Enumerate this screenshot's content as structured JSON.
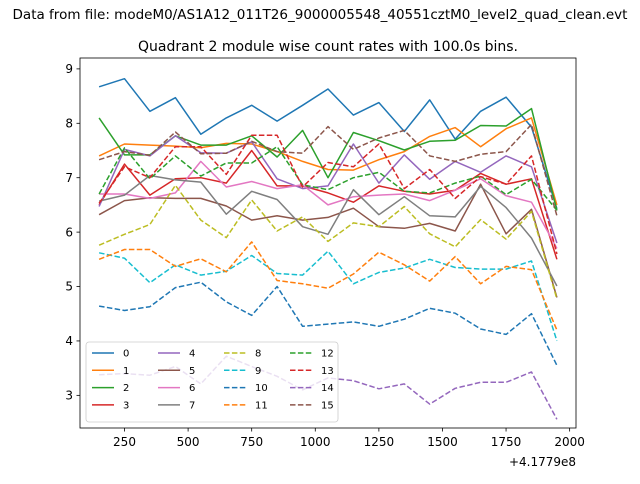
{
  "figure": {
    "suptitle": "Data from file: modeM0/AS1A12_011T26_9000005548_40551cztM0_level2_quad_clean.evt"
  },
  "chart_data": {
    "type": "line",
    "title": "Quadrant 2 module wise count rates with 100.0s bins.",
    "xlabel": "",
    "ylabel": "",
    "x_offset_label": "+4.1779e8",
    "x": [
      150,
      250,
      350,
      450,
      550,
      650,
      750,
      850,
      950,
      1050,
      1150,
      1250,
      1350,
      1450,
      1550,
      1650,
      1750,
      1850,
      1950
    ],
    "xlim": [
      75,
      2025
    ],
    "ylim": [
      2.4,
      9.2
    ],
    "xticks": [
      250,
      500,
      750,
      1000,
      1250,
      1500,
      1750,
      2000
    ],
    "xtick_labels": [
      "250",
      "500",
      "750",
      "1000",
      "1250",
      "1500",
      "1750",
      "2000"
    ],
    "yticks": [
      3,
      4,
      5,
      6,
      7,
      8,
      9
    ],
    "ytick_labels": [
      "3",
      "4",
      "5",
      "6",
      "7",
      "8",
      "9"
    ],
    "grid": false,
    "legend_position": "lower-left",
    "legend_columns": 4,
    "series": [
      {
        "name": "0",
        "color": "#1f77b4",
        "dash": "solid",
        "values": [
          8.67,
          8.82,
          8.22,
          8.47,
          7.8,
          8.1,
          8.33,
          8.04,
          8.33,
          8.63,
          8.15,
          8.38,
          7.85,
          8.43,
          7.71,
          8.22,
          8.48,
          7.93,
          6.43
        ]
      },
      {
        "name": "1",
        "color": "#ff7f0e",
        "dash": "solid",
        "values": [
          7.4,
          7.62,
          7.6,
          7.58,
          7.55,
          7.63,
          7.62,
          7.48,
          7.3,
          7.15,
          7.14,
          7.33,
          7.48,
          7.76,
          7.92,
          7.57,
          7.9,
          8.1,
          6.5
        ]
      },
      {
        "name": "2",
        "color": "#2ca02c",
        "dash": "solid",
        "values": [
          8.1,
          7.42,
          7.42,
          7.77,
          7.6,
          7.6,
          7.77,
          7.38,
          7.87,
          7.0,
          7.83,
          7.68,
          7.51,
          7.67,
          7.69,
          7.96,
          7.95,
          8.27,
          6.4
        ]
      },
      {
        "name": "3",
        "color": "#d62728",
        "dash": "solid",
        "values": [
          6.5,
          7.25,
          6.68,
          6.98,
          7.0,
          6.9,
          7.5,
          6.85,
          6.85,
          6.72,
          6.55,
          6.85,
          6.75,
          6.7,
          6.77,
          7.08,
          6.88,
          6.98,
          5.5
        ]
      },
      {
        "name": "4",
        "color": "#9467bd",
        "dash": "solid",
        "values": [
          6.47,
          7.52,
          7.4,
          7.77,
          7.46,
          7.45,
          7.66,
          6.98,
          6.8,
          6.85,
          7.62,
          6.9,
          7.42,
          6.97,
          7.3,
          7.1,
          7.4,
          7.2,
          5.8
        ]
      },
      {
        "name": "5",
        "color": "#8c564b",
        "dash": "solid",
        "values": [
          6.32,
          6.58,
          6.63,
          6.62,
          6.62,
          6.48,
          6.22,
          6.3,
          6.22,
          6.27,
          6.44,
          6.1,
          6.07,
          6.16,
          6.02,
          6.88,
          5.97,
          6.42,
          4.8
        ]
      },
      {
        "name": "6",
        "color": "#e377c2",
        "dash": "solid",
        "values": [
          6.7,
          6.7,
          6.62,
          6.72,
          7.3,
          6.83,
          6.93,
          6.8,
          6.87,
          6.5,
          6.65,
          6.68,
          6.7,
          6.58,
          6.77,
          6.98,
          6.67,
          6.55,
          5.7
        ]
      },
      {
        "name": "7",
        "color": "#7f7f7f",
        "dash": "solid",
        "values": [
          6.57,
          6.68,
          7.04,
          6.96,
          6.92,
          6.33,
          6.75,
          6.6,
          6.1,
          5.96,
          6.78,
          6.32,
          6.65,
          6.3,
          6.28,
          6.84,
          6.45,
          5.89,
          5.01
        ]
      },
      {
        "name": "8",
        "color": "#bcbd22",
        "dash": "dashed",
        "values": [
          5.76,
          5.96,
          6.14,
          6.86,
          6.22,
          5.9,
          6.59,
          6.02,
          6.28,
          5.83,
          6.17,
          6.1,
          6.47,
          5.97,
          5.73,
          6.23,
          5.87,
          6.38,
          4.77
        ]
      },
      {
        "name": "9",
        "color": "#17becf",
        "dash": "dashed",
        "values": [
          5.62,
          5.52,
          5.07,
          5.4,
          5.21,
          5.28,
          5.57,
          5.24,
          5.21,
          5.65,
          5.05,
          5.26,
          5.34,
          5.5,
          5.35,
          5.32,
          5.32,
          5.47,
          4.0
        ]
      },
      {
        "name": "10",
        "color": "#1f77b4",
        "dash": "dashed",
        "values": [
          4.64,
          4.56,
          4.63,
          4.98,
          5.08,
          4.72,
          4.47,
          5.0,
          4.27,
          4.31,
          4.35,
          4.27,
          4.4,
          4.6,
          4.51,
          4.22,
          4.12,
          4.5,
          3.55
        ]
      },
      {
        "name": "11",
        "color": "#ff7f0e",
        "dash": "dashed",
        "values": [
          5.5,
          5.68,
          5.68,
          5.37,
          5.51,
          5.27,
          5.82,
          5.11,
          5.05,
          4.97,
          5.23,
          5.63,
          5.4,
          5.1,
          5.55,
          5.05,
          5.37,
          5.31,
          4.2
        ]
      },
      {
        "name": "12",
        "color": "#2ca02c",
        "dash": "dashed",
        "values": [
          6.7,
          7.55,
          6.98,
          7.4,
          7.03,
          7.27,
          7.27,
          7.57,
          6.87,
          6.78,
          7.0,
          7.1,
          6.75,
          6.72,
          6.9,
          7.03,
          6.69,
          6.97,
          6.4
        ]
      },
      {
        "name": "13",
        "color": "#d62728",
        "dash": "dashed",
        "values": [
          6.53,
          7.2,
          7.0,
          7.57,
          7.57,
          7.06,
          7.78,
          7.78,
          6.83,
          7.28,
          7.2,
          7.62,
          6.8,
          7.15,
          6.62,
          7.02,
          6.88,
          7.4,
          5.6
        ]
      },
      {
        "name": "14",
        "color": "#9467bd",
        "dash": "dashed",
        "values": [
          3.38,
          3.4,
          3.37,
          3.53,
          3.21,
          3.72,
          3.53,
          3.35,
          3.1,
          3.32,
          3.27,
          3.12,
          3.21,
          2.84,
          3.13,
          3.24,
          3.24,
          3.43,
          2.56
        ]
      },
      {
        "name": "15",
        "color": "#8c564b",
        "dash": "dashed",
        "values": [
          7.33,
          7.48,
          7.41,
          7.84,
          7.44,
          7.45,
          7.67,
          7.48,
          7.45,
          7.94,
          7.52,
          7.73,
          7.87,
          7.4,
          7.3,
          7.43,
          7.48,
          7.98,
          6.3
        ]
      }
    ]
  }
}
